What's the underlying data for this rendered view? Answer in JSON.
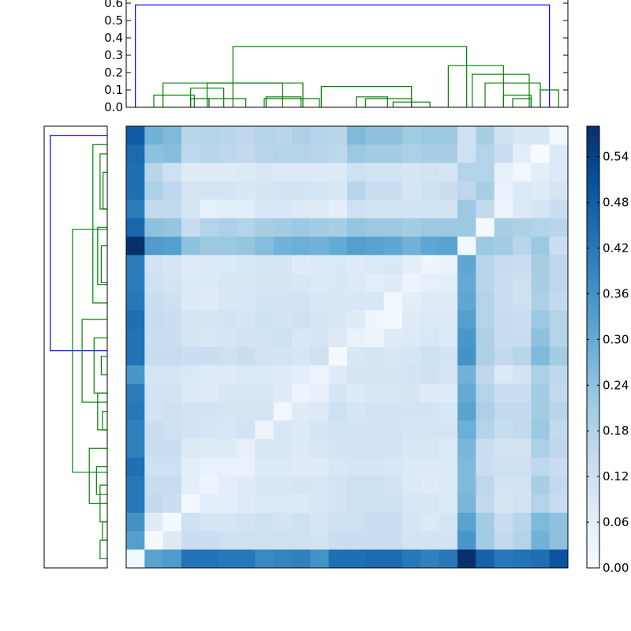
{
  "colors": {
    "link_above_threshold": "#0000ff",
    "link_below_threshold": "#008000",
    "colormap_low": "#f7fbff",
    "colormap_high": "#08306b",
    "axes_frame": "#000000"
  },
  "chart_data": [
    {
      "type": "dendrogram",
      "orientation": "top",
      "ylim": [
        0,
        0.6
      ],
      "yticks": [
        "0.0",
        "0.1",
        "0.2",
        "0.3",
        "0.4",
        "0.5",
        "0.6"
      ],
      "leaf_count": 24,
      "links": [
        {
          "a": 0.5,
          "b": 23.0,
          "h": 0.59,
          "color": "link_above_threshold"
        },
        {
          "a": 5.8,
          "b": 18.5,
          "h": 0.35,
          "color": "link_below_threshold"
        },
        {
          "a": 2.0,
          "b": 9.6,
          "h": 0.14,
          "color": "link_below_threshold"
        },
        {
          "a": 1.5,
          "b": 3.7,
          "h": 0.07,
          "color": "link_below_threshold"
        },
        {
          "a": 4.4,
          "b": 8.5,
          "h": 0.14,
          "color": "link_below_threshold"
        },
        {
          "a": 3.5,
          "b": 5.3,
          "h": 0.11,
          "color": "link_below_threshold"
        },
        {
          "a": 3.5,
          "b": 4.5,
          "h": 0.05,
          "color": "link_below_threshold"
        },
        {
          "a": 4.5,
          "b": 6.5,
          "h": 0.05,
          "color": "link_below_threshold"
        },
        {
          "a": 7.6,
          "b": 9.5,
          "h": 0.06,
          "color": "link_below_threshold"
        },
        {
          "a": 7.5,
          "b": 10.5,
          "h": 0.05,
          "color": "link_below_threshold"
        },
        {
          "a": 10.6,
          "b": 15.5,
          "h": 0.12,
          "color": "link_below_threshold"
        },
        {
          "a": 12.5,
          "b": 14.2,
          "h": 0.06,
          "color": "link_below_threshold"
        },
        {
          "a": 13.0,
          "b": 15.5,
          "h": 0.05,
          "color": "link_below_threshold"
        },
        {
          "a": 14.5,
          "b": 16.5,
          "h": 0.03,
          "color": "link_below_threshold"
        },
        {
          "a": 17.5,
          "b": 20.5,
          "h": 0.24,
          "color": "link_below_threshold"
        },
        {
          "a": 18.8,
          "b": 21.9,
          "h": 0.19,
          "color": "link_below_threshold"
        },
        {
          "a": 19.5,
          "b": 22.5,
          "h": 0.14,
          "color": "link_below_threshold"
        },
        {
          "a": 20.5,
          "b": 22.0,
          "h": 0.07,
          "color": "link_below_threshold"
        },
        {
          "a": 21.0,
          "b": 22.0,
          "h": 0.05,
          "color": "link_below_threshold"
        },
        {
          "a": 22.5,
          "b": 23.5,
          "h": 0.1,
          "color": "link_below_threshold"
        }
      ]
    },
    {
      "type": "dendrogram",
      "orientation": "left",
      "leaf_count": 24,
      "links": [
        {
          "a": 0.5,
          "b": 12.2,
          "h": 0.95,
          "color": "link_above_threshold"
        },
        {
          "a": 5.6,
          "b": 18.8,
          "h": 0.58,
          "color": "link_below_threshold"
        },
        {
          "a": 1.0,
          "b": 9.6,
          "h": 0.24,
          "color": "link_below_threshold"
        },
        {
          "a": 1.5,
          "b": 4.5,
          "h": 0.12,
          "color": "link_below_threshold"
        },
        {
          "a": 2.5,
          "b": 4.5,
          "h": 0.07,
          "color": "link_below_threshold"
        },
        {
          "a": 5.5,
          "b": 8.6,
          "h": 0.16,
          "color": "link_below_threshold"
        },
        {
          "a": 6.5,
          "b": 8.5,
          "h": 0.1,
          "color": "link_below_threshold"
        },
        {
          "a": 10.5,
          "b": 15.0,
          "h": 0.42,
          "color": "link_below_threshold"
        },
        {
          "a": 11.5,
          "b": 14.5,
          "h": 0.22,
          "color": "link_below_threshold"
        },
        {
          "a": 12.5,
          "b": 13.5,
          "h": 0.1,
          "color": "link_below_threshold"
        },
        {
          "a": 14.5,
          "b": 16.5,
          "h": 0.16,
          "color": "link_below_threshold"
        },
        {
          "a": 15.5,
          "b": 16.5,
          "h": 0.08,
          "color": "link_below_threshold"
        },
        {
          "a": 17.5,
          "b": 20.5,
          "h": 0.3,
          "color": "link_below_threshold"
        },
        {
          "a": 18.5,
          "b": 20.0,
          "h": 0.18,
          "color": "link_below_threshold"
        },
        {
          "a": 19.5,
          "b": 21.5,
          "h": 0.12,
          "color": "link_below_threshold"
        },
        {
          "a": 21.5,
          "b": 22.5,
          "h": 0.08,
          "color": "link_below_threshold"
        },
        {
          "a": 22.5,
          "b": 23.5,
          "h": 0.12,
          "color": "link_below_threshold"
        }
      ]
    },
    {
      "type": "heatmap",
      "rows": 24,
      "cols": 24,
      "colormap": "Blues",
      "vmin": 0.0,
      "vmax": 0.58,
      "colorbar_ticks": [
        "0.00",
        "0.06",
        "0.12",
        "0.18",
        "0.24",
        "0.30",
        "0.36",
        "0.42",
        "0.48",
        "0.54"
      ],
      "values": [
        [
          0.48,
          0.28,
          0.26,
          0.17,
          0.18,
          0.17,
          0.16,
          0.18,
          0.17,
          0.19,
          0.18,
          0.17,
          0.26,
          0.24,
          0.24,
          0.21,
          0.22,
          0.22,
          0.12,
          0.2,
          0.12,
          0.09,
          0.09,
          0.02
        ],
        [
          0.45,
          0.24,
          0.25,
          0.16,
          0.17,
          0.16,
          0.15,
          0.17,
          0.18,
          0.18,
          0.17,
          0.16,
          0.22,
          0.21,
          0.21,
          0.19,
          0.2,
          0.2,
          0.12,
          0.18,
          0.13,
          0.06,
          0.0,
          0.08
        ],
        [
          0.44,
          0.17,
          0.12,
          0.07,
          0.07,
          0.07,
          0.08,
          0.09,
          0.08,
          0.08,
          0.08,
          0.08,
          0.12,
          0.11,
          0.11,
          0.1,
          0.11,
          0.1,
          0.18,
          0.18,
          0.05,
          0.02,
          0.06,
          0.08
        ],
        [
          0.44,
          0.19,
          0.16,
          0.1,
          0.1,
          0.1,
          0.09,
          0.1,
          0.11,
          0.11,
          0.1,
          0.09,
          0.17,
          0.13,
          0.13,
          0.1,
          0.12,
          0.13,
          0.16,
          0.2,
          0.04,
          0.08,
          0.07,
          0.1
        ],
        [
          0.41,
          0.15,
          0.15,
          0.1,
          0.05,
          0.06,
          0.06,
          0.09,
          0.09,
          0.08,
          0.07,
          0.06,
          0.12,
          0.11,
          0.11,
          0.11,
          0.11,
          0.11,
          0.22,
          0.15,
          0.03,
          0.08,
          0.1,
          0.13
        ],
        [
          0.46,
          0.24,
          0.23,
          0.14,
          0.18,
          0.19,
          0.18,
          0.2,
          0.21,
          0.22,
          0.21,
          0.2,
          0.23,
          0.22,
          0.22,
          0.21,
          0.22,
          0.22,
          0.22,
          0.01,
          0.2,
          0.19,
          0.18,
          0.17
        ],
        [
          0.58,
          0.34,
          0.33,
          0.24,
          0.22,
          0.22,
          0.23,
          0.25,
          0.28,
          0.29,
          0.28,
          0.3,
          0.33,
          0.32,
          0.31,
          0.28,
          0.31,
          0.32,
          0.02,
          0.22,
          0.21,
          0.17,
          0.22,
          0.13
        ],
        [
          0.41,
          0.11,
          0.1,
          0.07,
          0.08,
          0.08,
          0.09,
          0.1,
          0.1,
          0.07,
          0.08,
          0.09,
          0.07,
          0.08,
          0.09,
          0.06,
          0.03,
          0.04,
          0.31,
          0.17,
          0.14,
          0.13,
          0.2,
          0.16
        ],
        [
          0.41,
          0.12,
          0.11,
          0.08,
          0.08,
          0.09,
          0.09,
          0.1,
          0.1,
          0.09,
          0.08,
          0.09,
          0.08,
          0.06,
          0.07,
          0.03,
          0.05,
          0.06,
          0.3,
          0.17,
          0.13,
          0.12,
          0.2,
          0.16
        ],
        [
          0.42,
          0.13,
          0.12,
          0.08,
          0.07,
          0.09,
          0.09,
          0.11,
          0.11,
          0.11,
          0.09,
          0.09,
          0.09,
          0.09,
          0.02,
          0.06,
          0.07,
          0.07,
          0.31,
          0.18,
          0.13,
          0.12,
          0.19,
          0.15
        ],
        [
          0.44,
          0.14,
          0.13,
          0.1,
          0.1,
          0.11,
          0.1,
          0.12,
          0.11,
          0.12,
          0.1,
          0.09,
          0.07,
          0.03,
          0.01,
          0.07,
          0.08,
          0.08,
          0.33,
          0.18,
          0.14,
          0.13,
          0.22,
          0.18
        ],
        [
          0.43,
          0.13,
          0.13,
          0.1,
          0.09,
          0.1,
          0.11,
          0.11,
          0.12,
          0.09,
          0.1,
          0.08,
          0.04,
          0.03,
          0.07,
          0.08,
          0.09,
          0.08,
          0.35,
          0.19,
          0.14,
          0.14,
          0.24,
          0.18
        ],
        [
          0.43,
          0.14,
          0.14,
          0.13,
          0.13,
          0.12,
          0.13,
          0.11,
          0.11,
          0.1,
          0.12,
          0.01,
          0.09,
          0.1,
          0.09,
          0.1,
          0.12,
          0.11,
          0.36,
          0.19,
          0.15,
          0.17,
          0.26,
          0.21
        ],
        [
          0.35,
          0.1,
          0.1,
          0.09,
          0.07,
          0.07,
          0.08,
          0.08,
          0.07,
          0.06,
          0.03,
          0.07,
          0.1,
          0.1,
          0.1,
          0.11,
          0.12,
          0.1,
          0.28,
          0.16,
          0.08,
          0.11,
          0.19,
          0.16
        ],
        [
          0.41,
          0.11,
          0.11,
          0.08,
          0.07,
          0.09,
          0.09,
          0.09,
          0.07,
          0.03,
          0.05,
          0.1,
          0.08,
          0.09,
          0.09,
          0.1,
          0.07,
          0.07,
          0.3,
          0.18,
          0.13,
          0.13,
          0.21,
          0.15
        ],
        [
          0.42,
          0.11,
          0.12,
          0.11,
          0.11,
          0.1,
          0.1,
          0.1,
          0.02,
          0.07,
          0.08,
          0.12,
          0.1,
          0.11,
          0.11,
          0.11,
          0.11,
          0.09,
          0.32,
          0.19,
          0.15,
          0.15,
          0.21,
          0.17
        ],
        [
          0.4,
          0.13,
          0.12,
          0.11,
          0.1,
          0.09,
          0.11,
          0.03,
          0.09,
          0.08,
          0.1,
          0.11,
          0.11,
          0.11,
          0.11,
          0.1,
          0.1,
          0.1,
          0.29,
          0.18,
          0.14,
          0.15,
          0.22,
          0.15
        ],
        [
          0.4,
          0.13,
          0.13,
          0.08,
          0.07,
          0.07,
          0.05,
          0.09,
          0.09,
          0.08,
          0.09,
          0.11,
          0.11,
          0.11,
          0.11,
          0.09,
          0.09,
          0.08,
          0.27,
          0.13,
          0.11,
          0.11,
          0.19,
          0.16
        ],
        [
          0.44,
          0.12,
          0.12,
          0.06,
          0.04,
          0.04,
          0.04,
          0.08,
          0.08,
          0.07,
          0.07,
          0.09,
          0.1,
          0.1,
          0.09,
          0.08,
          0.08,
          0.08,
          0.26,
          0.13,
          0.12,
          0.12,
          0.16,
          0.14
        ],
        [
          0.42,
          0.14,
          0.14,
          0.06,
          0.03,
          0.06,
          0.07,
          0.09,
          0.09,
          0.1,
          0.09,
          0.11,
          0.12,
          0.12,
          0.11,
          0.08,
          0.07,
          0.08,
          0.26,
          0.16,
          0.11,
          0.11,
          0.2,
          0.15
        ],
        [
          0.42,
          0.15,
          0.13,
          0.02,
          0.06,
          0.06,
          0.07,
          0.08,
          0.08,
          0.08,
          0.09,
          0.11,
          0.12,
          0.12,
          0.12,
          0.09,
          0.09,
          0.08,
          0.27,
          0.15,
          0.1,
          0.11,
          0.18,
          0.14
        ],
        [
          0.36,
          0.07,
          0.01,
          0.12,
          0.1,
          0.1,
          0.11,
          0.12,
          0.11,
          0.12,
          0.1,
          0.12,
          0.12,
          0.13,
          0.13,
          0.1,
          0.08,
          0.1,
          0.32,
          0.21,
          0.14,
          0.17,
          0.26,
          0.24
        ],
        [
          0.33,
          0.01,
          0.08,
          0.13,
          0.13,
          0.12,
          0.12,
          0.12,
          0.12,
          0.12,
          0.11,
          0.13,
          0.13,
          0.13,
          0.13,
          0.11,
          0.11,
          0.11,
          0.35,
          0.21,
          0.15,
          0.18,
          0.28,
          0.24
        ],
        [
          0.02,
          0.32,
          0.34,
          0.43,
          0.43,
          0.42,
          0.42,
          0.38,
          0.39,
          0.4,
          0.36,
          0.44,
          0.44,
          0.45,
          0.45,
          0.42,
          0.4,
          0.42,
          0.58,
          0.47,
          0.42,
          0.43,
          0.44,
          0.5
        ]
      ]
    }
  ]
}
